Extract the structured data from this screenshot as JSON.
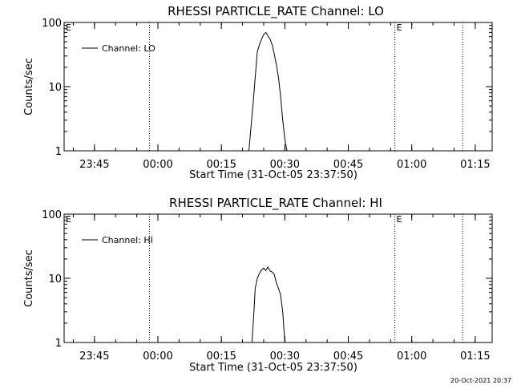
{
  "chart_data": [
    {
      "type": "line",
      "title": "RHESSI PARTICLE_RATE Channel: LO",
      "xlabel": "Start Time (31-Oct-05 23:37:50)",
      "ylabel": "Counts/sec",
      "yscale": "log",
      "ylim": [
        1,
        100
      ],
      "xlim": [
        "23:37:50",
        "01:19:00"
      ],
      "x_tick_labels": [
        "23:45",
        "00:00",
        "00:15",
        "00:30",
        "00:45",
        "01:00",
        "01:15"
      ],
      "y_tick_labels": [
        "1",
        "10",
        "100"
      ],
      "legend": {
        "placement": "top-left",
        "entries": [
          "Channel: LO"
        ]
      },
      "vertical_markers": [
        {
          "time": "23:58:00",
          "label": ""
        },
        {
          "time": "00:56:00",
          "label": "E"
        },
        {
          "time": "01:12:00",
          "label": ""
        }
      ],
      "extra_labels": [
        "E"
      ],
      "series": [
        {
          "name": "Channel: LO",
          "x": [
            "00:21:30",
            "00:22:30",
            "00:23:00",
            "00:23:30",
            "00:24:00",
            "00:24:30",
            "00:25:00",
            "00:25:30",
            "00:26:00",
            "00:26:30",
            "00:27:00",
            "00:27:30",
            "00:28:00",
            "00:28:30",
            "00:29:00",
            "00:29:30",
            "00:30:00",
            "00:30:30"
          ],
          "y": [
            1,
            5.5,
            14,
            35,
            45,
            55,
            65,
            70,
            62,
            55,
            45,
            32,
            22,
            14,
            7,
            3,
            1.5,
            1
          ]
        }
      ]
    },
    {
      "type": "line",
      "title": "RHESSI PARTICLE_RATE Channel: HI",
      "xlabel": "Start Time (31-Oct-05 23:37:50)",
      "ylabel": "Counts/sec",
      "yscale": "log",
      "ylim": [
        1,
        100
      ],
      "xlim": [
        "23:37:50",
        "01:19:00"
      ],
      "x_tick_labels": [
        "23:45",
        "00:00",
        "00:15",
        "00:30",
        "00:45",
        "01:00",
        "01:15"
      ],
      "y_tick_labels": [
        "1",
        "10",
        "100"
      ],
      "legend": {
        "placement": "top-left",
        "entries": [
          "Channel: HI"
        ]
      },
      "vertical_markers": [
        {
          "time": "23:58:00",
          "label": ""
        },
        {
          "time": "00:56:00",
          "label": "E"
        },
        {
          "time": "01:12:00",
          "label": ""
        }
      ],
      "extra_labels": [
        "E"
      ],
      "series": [
        {
          "name": "Channel: HI",
          "x": [
            "00:22:15",
            "00:22:45",
            "00:23:00",
            "00:23:30",
            "00:24:00",
            "00:24:30",
            "00:25:00",
            "00:25:30",
            "00:26:00",
            "00:26:30",
            "00:27:00",
            "00:27:30",
            "00:28:00",
            "00:28:30",
            "00:29:00",
            "00:29:30",
            "00:30:00"
          ],
          "y": [
            1,
            3.5,
            7,
            10,
            12,
            13.5,
            14.5,
            13.2,
            15,
            13,
            12.5,
            11.5,
            8.5,
            7,
            5.5,
            3,
            1
          ]
        }
      ]
    }
  ],
  "footer": {
    "timestamp": "20-Oct-2021 20:37"
  }
}
